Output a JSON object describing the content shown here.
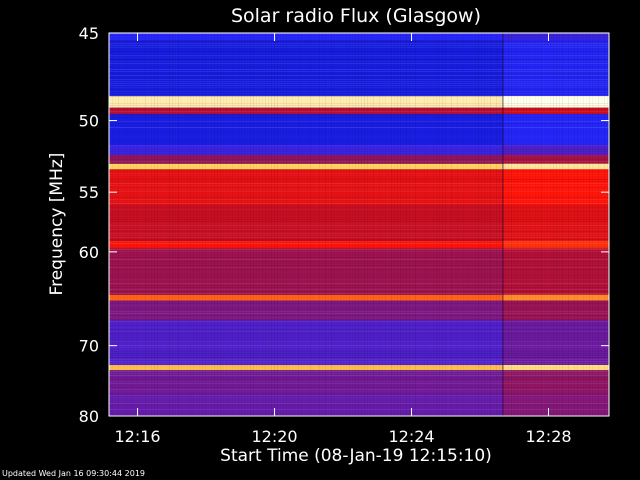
{
  "chart_data": {
    "type": "heatmap",
    "title": "Solar radio Flux (Glasgow)",
    "xlabel": "Start Time (08-Jan-19 12:15:10)",
    "ylabel": "Frequency [MHz]",
    "x_tick_labels": [
      "12:16",
      "12:20",
      "12:24",
      "12:28"
    ],
    "x_tick_minutes": [
      0.8333,
      4.8333,
      8.8333,
      12.8333
    ],
    "x_range_minutes": [
      0,
      14.6
    ],
    "y_tick_values": [
      45,
      50,
      55,
      60,
      70,
      80
    ],
    "y_tick_labels": [
      "45",
      "50",
      "55",
      "60",
      "70",
      "80"
    ],
    "y_range_mhz": [
      45,
      80
    ],
    "y_scale": "reciprocal",
    "colormap": "blue-purple-red-yellow-white",
    "event_minutes": 11.5,
    "freq_bands_mhz": [
      {
        "f0": 45.0,
        "f1": 45.4,
        "level": 0.22
      },
      {
        "f0": 45.4,
        "f1": 48.5,
        "level": 0.16
      },
      {
        "f0": 48.5,
        "f1": 49.2,
        "level": 0.95
      },
      {
        "f0": 49.2,
        "f1": 49.6,
        "level": 0.5
      },
      {
        "f0": 49.6,
        "f1": 51.6,
        "level": 0.17
      },
      {
        "f0": 51.6,
        "f1": 52.3,
        "level": 0.26
      },
      {
        "f0": 52.3,
        "f1": 52.9,
        "level": 0.42
      },
      {
        "f0": 52.9,
        "f1": 53.3,
        "level": 0.88
      },
      {
        "f0": 53.3,
        "f1": 56.0,
        "level": 0.6
      },
      {
        "f0": 56.0,
        "f1": 59.0,
        "level": 0.54
      },
      {
        "f0": 59.0,
        "f1": 59.7,
        "level": 0.64
      },
      {
        "f0": 59.7,
        "f1": 64.2,
        "level": 0.44
      },
      {
        "f0": 64.2,
        "f1": 64.8,
        "level": 0.76
      },
      {
        "f0": 64.8,
        "f1": 67.0,
        "level": 0.38
      },
      {
        "f0": 67.0,
        "f1": 72.5,
        "level": 0.3
      },
      {
        "f0": 72.5,
        "f1": 73.2,
        "level": 0.86
      },
      {
        "f0": 73.2,
        "f1": 76.5,
        "level": 0.36
      },
      {
        "f0": 76.5,
        "f1": 80.0,
        "level": 0.34
      }
    ]
  },
  "footer": {
    "updated_text": "Updated Wed Jan 16 09:30:44 2019"
  },
  "colors": {
    "background": "#000000",
    "axis": "#ffffff"
  }
}
